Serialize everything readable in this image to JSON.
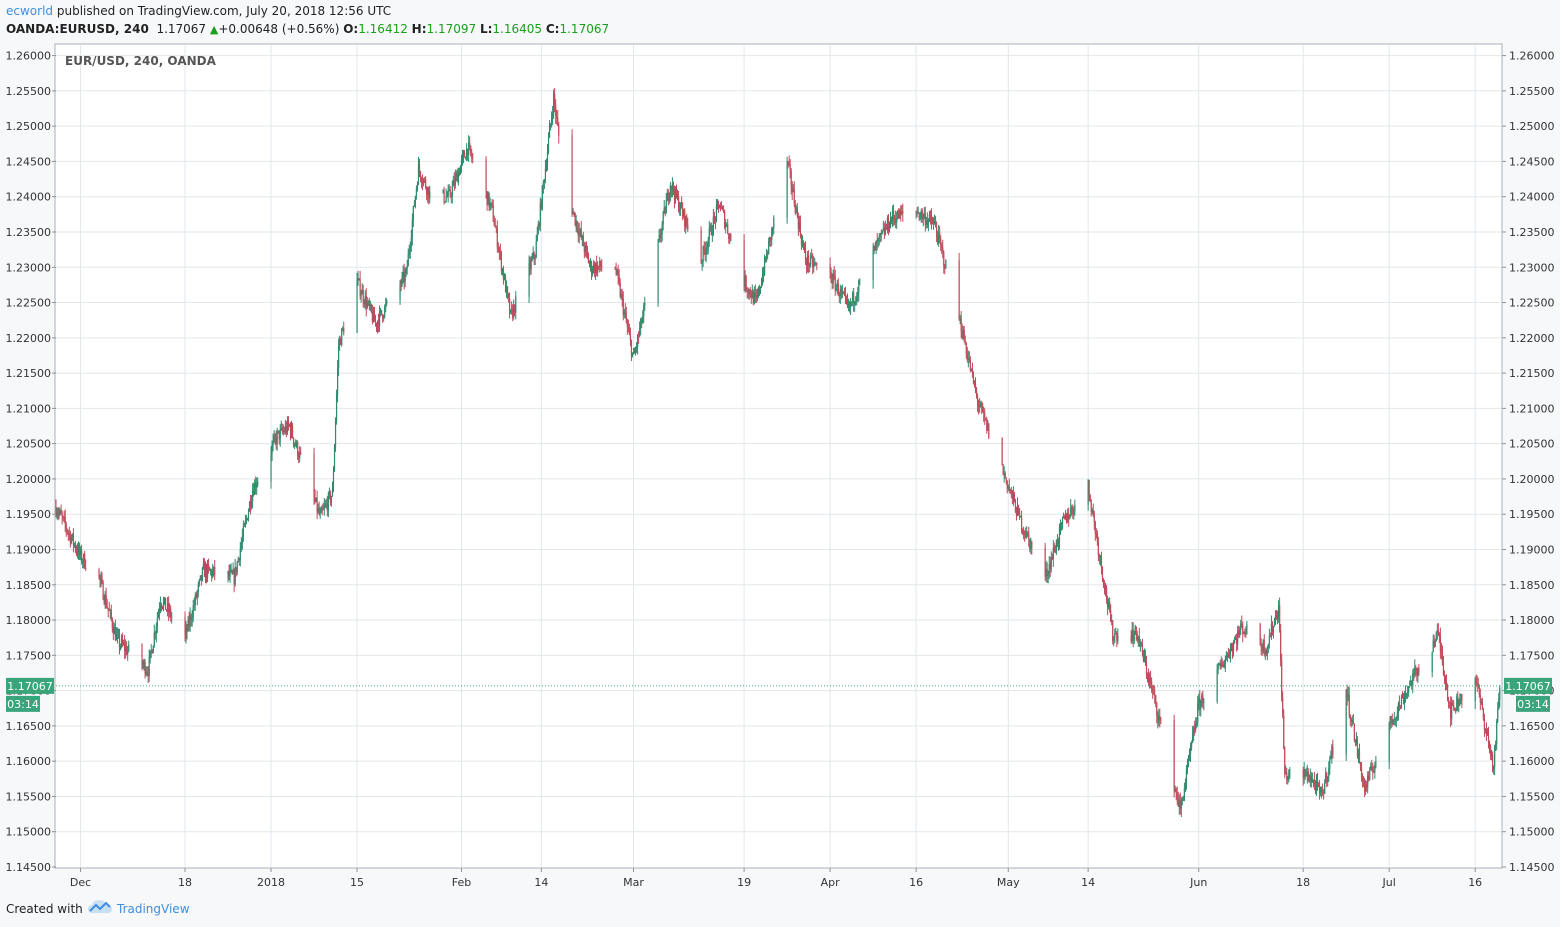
{
  "header": {
    "user": "ecworld",
    "published_text": "published on TradingView.com, July 20, 2018 12:56 UTC",
    "symbol": "OANDA:EURUSD, 240",
    "last": "1.17067",
    "change": "+0.00648 (+0.56%)",
    "o_label": "O:",
    "o_value": "1.16412",
    "h_label": "H:",
    "h_value": "1.17097",
    "l_label": "L:",
    "l_value": "1.16405",
    "c_label": "C:",
    "c_value": "1.17067"
  },
  "footer": {
    "created_with": "Created with",
    "brand": "TradingView"
  },
  "colors": {
    "up": "#2e8b6f",
    "down": "#c24a5a",
    "grid": "#e2e7ec",
    "accent": "#3aa57b",
    "link": "#3e8ee0"
  },
  "icons": {
    "change_arrow": "triangle-up-icon",
    "brand_logo": "tradingview-cloud-icon"
  },
  "chart_data": {
    "type": "candlestick",
    "title": "EUR/USD, 240, OANDA",
    "interval": "240",
    "ylim": [
      1.145,
      1.2615
    ],
    "y_ticks": [
      "1.26000",
      "1.25500",
      "1.25000",
      "1.24500",
      "1.24000",
      "1.23500",
      "1.23000",
      "1.22500",
      "1.22000",
      "1.21500",
      "1.21000",
      "1.20500",
      "1.20000",
      "1.19500",
      "1.19000",
      "1.18500",
      "1.18000",
      "1.17500",
      "1.17000",
      "1.16500",
      "1.16000",
      "1.15500",
      "1.15000",
      "1.14500"
    ],
    "x_labels": [
      {
        "label": "Dec",
        "date": "2017-12-01"
      },
      {
        "label": "18",
        "date": "2017-12-18"
      },
      {
        "label": "2018",
        "date": "2018-01-01"
      },
      {
        "label": "15",
        "date": "2018-01-15"
      },
      {
        "label": "Feb",
        "date": "2018-02-01"
      },
      {
        "label": "14",
        "date": "2018-02-14"
      },
      {
        "label": "Mar",
        "date": "2018-03-01"
      },
      {
        "label": "19",
        "date": "2018-03-19"
      },
      {
        "label": "Apr",
        "date": "2018-04-02"
      },
      {
        "label": "16",
        "date": "2018-04-16"
      },
      {
        "label": "May",
        "date": "2018-05-01"
      },
      {
        "label": "14",
        "date": "2018-05-14"
      },
      {
        "label": "Jun",
        "date": "2018-06-01"
      },
      {
        "label": "18",
        "date": "2018-06-18"
      },
      {
        "label": "Jul",
        "date": "2018-07-02"
      },
      {
        "label": "16",
        "date": "2018-07-16"
      }
    ],
    "last_price": "1.17067",
    "countdown": "03:14",
    "path": [
      [
        "2017-11-27",
        1.196
      ],
      [
        "2017-12-01",
        1.189
      ],
      [
        "2017-12-04",
        1.186
      ],
      [
        "2017-12-07",
        1.177
      ],
      [
        "2017-12-12",
        1.173
      ],
      [
        "2017-12-14",
        1.183
      ],
      [
        "2017-12-18",
        1.1775
      ],
      [
        "2017-12-21",
        1.187
      ],
      [
        "2017-12-26",
        1.186
      ],
      [
        "2017-12-29",
        1.1985
      ],
      [
        "2018-01-02",
        1.206
      ],
      [
        "2018-01-04",
        1.2075
      ],
      [
        "2018-01-09",
        1.1945
      ],
      [
        "2018-01-11",
        1.198
      ],
      [
        "2018-01-12",
        1.219
      ],
      [
        "2018-01-15",
        1.228
      ],
      [
        "2018-01-18",
        1.222
      ],
      [
        "2018-01-23",
        1.229
      ],
      [
        "2018-01-25",
        1.244
      ],
      [
        "2018-01-27",
        1.24
      ],
      [
        "2018-01-30",
        1.24
      ],
      [
        "2018-02-02",
        1.247
      ],
      [
        "2018-02-06",
        1.238
      ],
      [
        "2018-02-09",
        1.223
      ],
      [
        "2018-02-13",
        1.232
      ],
      [
        "2018-02-16",
        1.254
      ],
      [
        "2018-02-18",
        1.241
      ],
      [
        "2018-02-22",
        1.23
      ],
      [
        "2018-02-26",
        1.23
      ],
      [
        "2018-03-01",
        1.217
      ],
      [
        "2018-03-05",
        1.233
      ],
      [
        "2018-03-07",
        1.242
      ],
      [
        "2018-03-12",
        1.231
      ],
      [
        "2018-03-15",
        1.239
      ],
      [
        "2018-03-19",
        1.228
      ],
      [
        "2018-03-21",
        1.225
      ],
      [
        "2018-03-26",
        1.245
      ],
      [
        "2018-03-29",
        1.231
      ],
      [
        "2018-04-02",
        1.229
      ],
      [
        "2018-04-05",
        1.224
      ],
      [
        "2018-04-09",
        1.232
      ],
      [
        "2018-04-12",
        1.237
      ],
      [
        "2018-04-16",
        1.238
      ],
      [
        "2018-04-19",
        1.236
      ],
      [
        "2018-04-23",
        1.223
      ],
      [
        "2018-04-26",
        1.211
      ],
      [
        "2018-05-01",
        1.199
      ],
      [
        "2018-05-03",
        1.194
      ],
      [
        "2018-05-07",
        1.186
      ],
      [
        "2018-05-10",
        1.194
      ],
      [
        "2018-05-14",
        1.199
      ],
      [
        "2018-05-18",
        1.178
      ],
      [
        "2018-05-22",
        1.178
      ],
      [
        "2018-05-25",
        1.168
      ],
      [
        "2018-05-29",
        1.153
      ],
      [
        "2018-06-01",
        1.168
      ],
      [
        "2018-06-05",
        1.174
      ],
      [
        "2018-06-08",
        1.179
      ],
      [
        "2018-06-12",
        1.176
      ],
      [
        "2018-06-14",
        1.182
      ],
      [
        "2018-06-15",
        1.158
      ],
      [
        "2018-06-19",
        1.158
      ],
      [
        "2018-06-21",
        1.155
      ],
      [
        "2018-06-25",
        1.17
      ],
      [
        "2018-06-28",
        1.156
      ],
      [
        "2018-07-02",
        1.165
      ],
      [
        "2018-07-06",
        1.172
      ],
      [
        "2018-07-10",
        1.178
      ],
      [
        "2018-07-12",
        1.167
      ],
      [
        "2018-07-16",
        1.172
      ],
      [
        "2018-07-19",
        1.159
      ],
      [
        "2018-07-20",
        1.1707
      ]
    ]
  }
}
